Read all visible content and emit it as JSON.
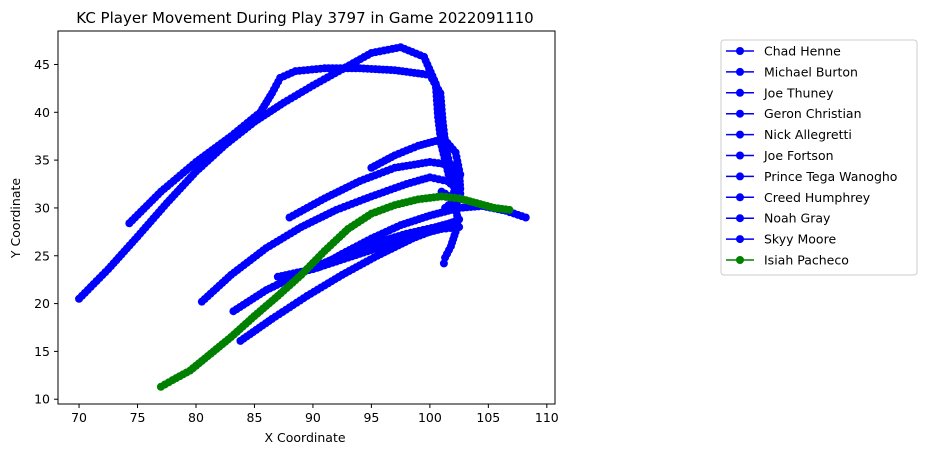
{
  "chart_data": {
    "type": "line",
    "title": "KC Player Movement During Play 3797 in Game 2022091110",
    "xlabel": "X Coordinate",
    "ylabel": "Y Coordinate",
    "xlim": [
      68.2,
      110.7
    ],
    "ylim": [
      9.5,
      48.5
    ],
    "xticks": [
      70,
      75,
      80,
      85,
      90,
      95,
      100,
      105,
      110
    ],
    "yticks": [
      10,
      15,
      20,
      25,
      30,
      35,
      40,
      45
    ],
    "grid": false,
    "legend_position": "right-outside",
    "marker": "circle",
    "series": [
      {
        "name": "Chad Henne",
        "color": "#0000ff",
        "x": [
          101.2,
          101.3,
          101.8,
          102.2,
          102.4,
          102.2,
          101.8,
          101.3,
          101.0
        ],
        "y": [
          24.2,
          24.8,
          26.0,
          27.5,
          28.8,
          30.0,
          31.0,
          31.5,
          31.7
        ]
      },
      {
        "name": "Michael Burton",
        "color": "#0000ff",
        "x": [
          80.5,
          83,
          86,
          89,
          92,
          95,
          98,
          100,
          101.5,
          102.3
        ],
        "y": [
          20.2,
          23.0,
          25.8,
          28.0,
          29.8,
          31.2,
          32.5,
          33.2,
          32.8,
          32.0
        ]
      },
      {
        "name": "Joe Thuney",
        "color": "#0000ff",
        "x": [
          83.2,
          86,
          89,
          92,
          95,
          98,
          100.5,
          102
        ],
        "y": [
          19.2,
          21.4,
          23.2,
          24.8,
          26.2,
          27.3,
          28.0,
          28.5
        ]
      },
      {
        "name": "Geron Christian",
        "color": "#0000ff",
        "x": [
          83.8,
          86.5,
          89.5,
          92.5,
          95.5,
          98.5,
          101,
          102.5
        ],
        "y": [
          16.1,
          18.4,
          20.8,
          23.0,
          25.0,
          26.8,
          28.0,
          28.8
        ]
      },
      {
        "name": "Nick Allegretti",
        "color": "#0000ff",
        "x": [
          87,
          90,
          93,
          96,
          99,
          101,
          102.5
        ],
        "y": [
          22.8,
          23.6,
          24.8,
          26.0,
          27.2,
          27.8,
          28.0
        ]
      },
      {
        "name": "Joe Fortson",
        "color": "#0000ff",
        "x": [
          95,
          97,
          99,
          100.5,
          101.5,
          102.2,
          102.5,
          102.6,
          102.3
        ],
        "y": [
          34.2,
          35.5,
          36.5,
          37.0,
          36.8,
          35.8,
          34.0,
          32.0,
          30.5
        ]
      },
      {
        "name": "Prince Tega Wanogho",
        "color": "#0000ff",
        "x": [
          88,
          91,
          94,
          97,
          100,
          101.8,
          102.6,
          102.2,
          101.8
        ],
        "y": [
          29.0,
          31.0,
          32.8,
          34.2,
          34.8,
          34.5,
          33.5,
          32.0,
          31.0
        ]
      },
      {
        "name": "Creed Humphrey",
        "color": "#0000ff",
        "x": [
          90.5,
          92.5,
          95,
          97.5,
          100,
          102.5,
          104.5,
          106.5,
          108.2
        ],
        "y": [
          23.8,
          25.2,
          26.8,
          28.2,
          29.2,
          30.0,
          30.2,
          29.7,
          29.0
        ]
      },
      {
        "name": "Noah Gray",
        "color": "#0000ff",
        "x": [
          74.3,
          77,
          80,
          83,
          85.5,
          86.5,
          87.2,
          88.5,
          91,
          94,
          97,
          100,
          100.9,
          101.1,
          101.4,
          101.9,
          102.3,
          101.9,
          101.3
        ],
        "y": [
          28.4,
          31.7,
          34.8,
          37.5,
          40.0,
          42.0,
          43.6,
          44.3,
          44.6,
          44.6,
          44.4,
          43.9,
          42.0,
          39.0,
          36.0,
          33.5,
          31.8,
          30.6,
          30.0
        ]
      },
      {
        "name": "Skyy Moore",
        "color": "#0000ff",
        "x": [
          70.0,
          72.5,
          75,
          77.5,
          80,
          82.5,
          85,
          87.5,
          90,
          92.5,
          95,
          97.5,
          99.5,
          100.5,
          100.7,
          101.0,
          101.6,
          102.6
        ],
        "y": [
          20.5,
          23.6,
          27.0,
          30.5,
          33.8,
          36.6,
          39.0,
          41.0,
          42.8,
          44.5,
          46.2,
          46.8,
          45.8,
          43.0,
          39.5,
          36.5,
          33.5,
          31.5
        ]
      },
      {
        "name": "Isiah Pacheco",
        "color": "#008000",
        "x": [
          77.0,
          78,
          79.5,
          81,
          83,
          85,
          87,
          89,
          91,
          93,
          95,
          97,
          99,
          101,
          102.5,
          104,
          105.5,
          106.8
        ],
        "y": [
          11.3,
          12.0,
          13.0,
          14.5,
          16.5,
          18.7,
          20.8,
          23.0,
          25.5,
          27.8,
          29.4,
          30.3,
          30.9,
          31.2,
          31.0,
          30.5,
          30.0,
          29.8
        ]
      }
    ]
  }
}
